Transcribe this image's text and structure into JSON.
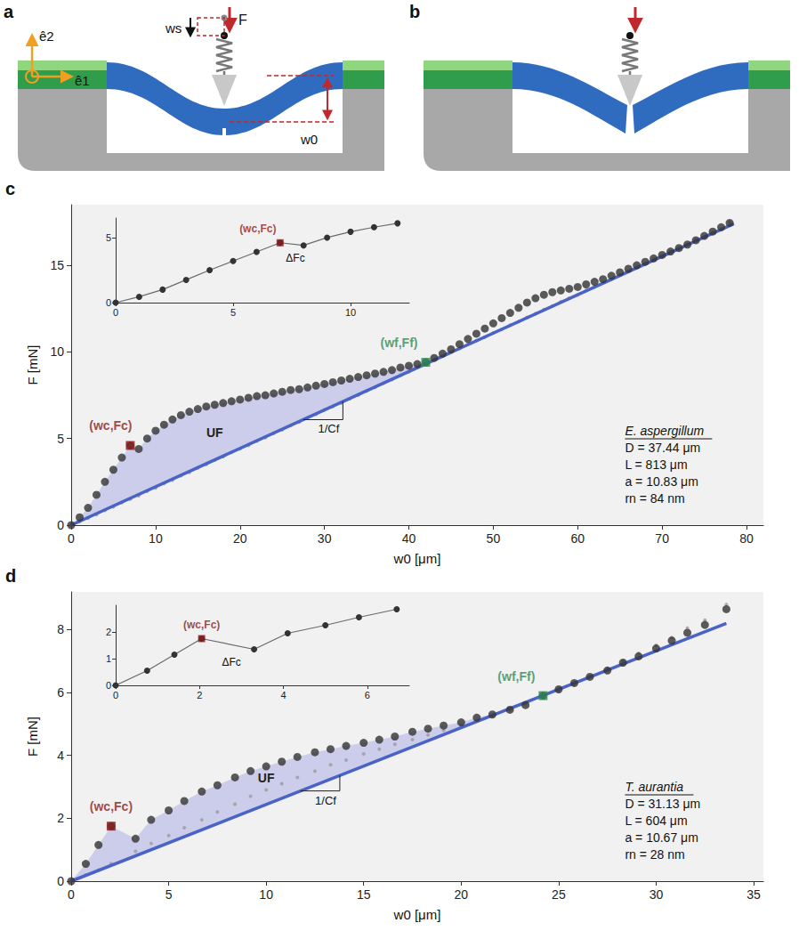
{
  "diagram": {
    "panels": [
      {
        "letter": "a",
        "labels": {
          "e1": "ê1",
          "e2": "ê2",
          "ws": "ws",
          "F": "F",
          "w0": "w0"
        }
      },
      {
        "letter": "b"
      }
    ]
  },
  "chart_data": [
    {
      "type": "scatter",
      "title": "c",
      "x_label": "w0 [μm]",
      "y_label": "F [mN]",
      "xlim": [
        0,
        82
      ],
      "xticks": [
        0,
        10,
        20,
        30,
        40,
        50,
        60,
        70,
        80
      ],
      "ylim": [
        0,
        18.5
      ],
      "yticks": [
        0,
        5,
        10,
        15
      ],
      "series": [
        {
          "type": "scatter",
          "color": "#333333",
          "marker": "circle",
          "x": [
            0,
            1,
            2,
            3,
            4,
            5,
            6,
            7,
            8,
            9,
            10,
            11,
            12,
            13,
            14,
            15,
            16,
            17,
            18,
            19,
            20,
            21,
            22,
            23,
            24,
            25,
            26,
            27,
            28,
            29,
            30,
            31,
            32,
            33,
            34,
            35,
            36,
            37,
            38,
            39,
            40,
            41,
            42,
            43,
            44,
            45,
            46,
            47,
            48,
            49,
            50,
            51,
            52,
            53,
            54,
            55,
            56,
            57,
            58,
            59,
            60,
            61,
            62,
            63,
            64,
            65,
            66,
            67,
            68,
            69,
            70,
            71,
            72,
            73,
            74,
            75,
            76,
            77,
            78
          ],
          "values": [
            0,
            0.45,
            1.0,
            1.75,
            2.5,
            3.2,
            3.9,
            4.6,
            4.4,
            5.0,
            5.45,
            5.8,
            6.1,
            6.35,
            6.55,
            6.7,
            6.85,
            6.95,
            7.05,
            7.15,
            7.25,
            7.35,
            7.45,
            7.5,
            7.6,
            7.7,
            7.8,
            7.85,
            7.95,
            8.05,
            8.15,
            8.25,
            8.35,
            8.45,
            8.55,
            8.65,
            8.75,
            8.85,
            8.95,
            9.1,
            9.2,
            9.3,
            9.4,
            9.65,
            9.9,
            10.15,
            10.45,
            10.75,
            11.05,
            11.35,
            11.65,
            11.95,
            12.25,
            12.55,
            12.85,
            13.1,
            13.3,
            13.45,
            13.55,
            13.65,
            13.75,
            13.9,
            14.05,
            14.2,
            14.4,
            14.6,
            14.8,
            15.0,
            15.2,
            15.4,
            15.6,
            15.8,
            16.0,
            16.2,
            16.45,
            16.7,
            16.95,
            17.2,
            17.45
          ]
        },
        {
          "type": "scatter",
          "color": "#9a9a9a",
          "marker": "circle",
          "x": [
            0,
            1,
            2,
            3,
            4,
            5,
            6,
            7,
            8,
            9,
            10,
            11,
            12,
            13,
            14,
            15,
            16,
            17,
            18,
            19,
            20,
            21,
            22,
            23,
            24,
            25,
            26,
            27,
            28,
            29,
            30,
            31,
            32,
            33,
            34,
            35,
            36,
            37,
            38,
            39,
            40,
            41,
            42,
            43,
            44,
            45,
            46,
            47,
            48,
            49,
            50,
            51,
            52,
            53,
            54,
            55,
            56,
            57,
            58,
            59,
            60,
            61,
            62,
            63,
            64,
            65,
            66,
            67,
            68,
            69,
            70,
            71,
            72,
            73,
            74,
            75,
            76,
            77,
            78
          ],
          "values": [
            0,
            0.2,
            0.4,
            0.6,
            0.85,
            1.05,
            1.3,
            1.5,
            1.7,
            1.95,
            2.15,
            2.4,
            2.6,
            2.85,
            3.05,
            3.3,
            3.5,
            3.75,
            3.95,
            4.2,
            4.4,
            4.6,
            4.85,
            5.05,
            5.3,
            5.5,
            5.75,
            5.95,
            6.2,
            6.4,
            6.65,
            6.85,
            7.05,
            7.3,
            7.5,
            7.75,
            7.95,
            8.2,
            8.4,
            8.65,
            8.85,
            9.1,
            9.3,
            9.55,
            9.75,
            10.0,
            10.2,
            10.45,
            10.65,
            10.85,
            11.1,
            11.3,
            11.55,
            11.75,
            12.0,
            12.2,
            12.45,
            12.65,
            12.9,
            13.1,
            13.3,
            13.55,
            13.75,
            14.0,
            14.2,
            14.45,
            14.65,
            14.9,
            15.1,
            15.35,
            15.55,
            15.8,
            16.0,
            16.2,
            16.45,
            16.65,
            16.9,
            17.1,
            17.5
          ]
        },
        {
          "type": "line",
          "color": "#4a63c6",
          "x": [
            0,
            78.5
          ],
          "values": [
            0,
            17.4
          ]
        }
      ],
      "critical": {
        "text": "(wc,Fc)",
        "x": 7,
        "y": 4.6,
        "color": "#8b1a1a"
      },
      "final": {
        "text": "(wf,Ff)",
        "x": 42,
        "y": 9.4,
        "color": "#2e8b57"
      },
      "energy_label": "UF",
      "slope_label": "1/Cf",
      "specimen": {
        "name": "E. aspergillum",
        "lines": [
          "D = 37.44 μm",
          "L = 813 μm",
          "a = 10.83 μm",
          "rn = 84 nm"
        ]
      }
    },
    {
      "type": "line",
      "xlim": [
        0,
        12.5
      ],
      "xticks": [
        0,
        5,
        10
      ],
      "ylim": [
        0,
        6.5
      ],
      "yticks": [
        0,
        5
      ],
      "series": [
        {
          "color": "#333333",
          "marker": "circle",
          "x": [
            0,
            1,
            2,
            3,
            4,
            5,
            6,
            7,
            8,
            9,
            10,
            11,
            12
          ],
          "values": [
            0,
            0.45,
            1.0,
            1.75,
            2.5,
            3.2,
            3.9,
            4.6,
            4.4,
            5.0,
            5.45,
            5.8,
            6.1
          ]
        }
      ],
      "critical": {
        "text": "(wc,Fc)",
        "x": 7,
        "y": 4.6,
        "color": "#8b1a1a"
      },
      "drop_label": "ΔFc"
    },
    {
      "type": "scatter",
      "title": "d",
      "x_label": "w0 [μm]",
      "y_label": "F [mN]",
      "xlim": [
        0,
        35.5
      ],
      "xticks": [
        0,
        5,
        10,
        15,
        20,
        25,
        30,
        35
      ],
      "ylim": [
        0,
        9.2
      ],
      "yticks": [
        0,
        2,
        4,
        6,
        8
      ],
      "series": [
        {
          "type": "scatter",
          "color": "#333333",
          "marker": "circle",
          "x": [
            0,
            0.75,
            1.4,
            2.05,
            3.3,
            4.1,
            5.0,
            5.8,
            6.7,
            7.5,
            8.4,
            9.2,
            10.0,
            10.8,
            11.6,
            12.5,
            13.3,
            14.1,
            15.0,
            15.8,
            16.6,
            17.5,
            18.3,
            19.1,
            20.0,
            20.8,
            21.6,
            22.5,
            23.3,
            24.2,
            25.0,
            25.8,
            26.6,
            27.5,
            28.3,
            29.1,
            30.0,
            30.8,
            31.6,
            32.5,
            33.6
          ],
          "values": [
            0,
            0.55,
            1.15,
            1.75,
            1.35,
            1.95,
            2.25,
            2.55,
            2.85,
            3.05,
            3.3,
            3.5,
            3.65,
            3.8,
            3.95,
            4.1,
            4.2,
            4.3,
            4.4,
            4.5,
            4.6,
            4.75,
            4.85,
            4.95,
            5.05,
            5.2,
            5.3,
            5.45,
            5.6,
            5.9,
            6.1,
            6.3,
            6.5,
            6.7,
            6.95,
            7.15,
            7.4,
            7.65,
            7.9,
            8.15,
            8.65
          ]
        },
        {
          "type": "scatter",
          "color": "#9a9a9a",
          "marker": "circle",
          "x": [
            0,
            0.75,
            1.4,
            2.05,
            3.3,
            4.1,
            5.0,
            5.8,
            6.7,
            7.5,
            8.4,
            9.2,
            10.0,
            10.8,
            11.6,
            12.5,
            13.3,
            14.1,
            15.0,
            15.8,
            16.6,
            17.5,
            18.3,
            19.1,
            20.0,
            20.8,
            21.6,
            22.5,
            23.3,
            24.2,
            25.0,
            25.8,
            26.6,
            27.5,
            28.3,
            29.1,
            30.0,
            30.8,
            31.6,
            32.5,
            33.6
          ],
          "values": [
            0,
            0.2,
            0.35,
            0.55,
            0.95,
            1.2,
            1.45,
            1.7,
            1.95,
            2.2,
            2.45,
            2.7,
            2.9,
            3.1,
            3.3,
            3.5,
            3.7,
            3.85,
            4.05,
            4.2,
            4.35,
            4.5,
            4.65,
            4.8,
            4.95,
            5.1,
            5.25,
            5.45,
            5.65,
            5.85,
            6.05,
            6.25,
            6.5,
            6.75,
            7.0,
            7.25,
            7.5,
            7.75,
            8.05,
            8.3,
            8.8
          ]
        },
        {
          "type": "line",
          "color": "#4a63c6",
          "x": [
            0,
            33.6
          ],
          "values": [
            0,
            8.2
          ]
        }
      ],
      "critical": {
        "text": "(wc,Fc)",
        "x": 2.05,
        "y": 1.75,
        "color": "#8b1a1a"
      },
      "final": {
        "text": "(wf,Ff)",
        "x": 24.2,
        "y": 5.9,
        "color": "#2e8b57"
      },
      "energy_label": "UF",
      "slope_label": "1/Cf",
      "specimen": {
        "name": "T. aurantia",
        "lines": [
          "D = 31.13 μm",
          "L = 604 μm",
          "a = 10.67 μm",
          "rn = 28 nm"
        ]
      }
    },
    {
      "type": "line",
      "xlim": [
        0,
        7
      ],
      "xticks": [
        0,
        2,
        4,
        6
      ],
      "ylim": [
        0,
        3
      ],
      "yticks": [
        0,
        1,
        2
      ],
      "series": [
        {
          "color": "#333333",
          "marker": "circle",
          "x": [
            0,
            0.75,
            1.4,
            2.05,
            3.3,
            4.1,
            5.0,
            5.8,
            6.7
          ],
          "values": [
            0,
            0.55,
            1.15,
            1.75,
            1.35,
            1.95,
            2.25,
            2.55,
            2.85
          ]
        }
      ],
      "critical": {
        "text": "(wc,Fc)",
        "x": 2.05,
        "y": 1.75,
        "color": "#8b1a1a"
      },
      "drop_label": "ΔFc"
    }
  ]
}
